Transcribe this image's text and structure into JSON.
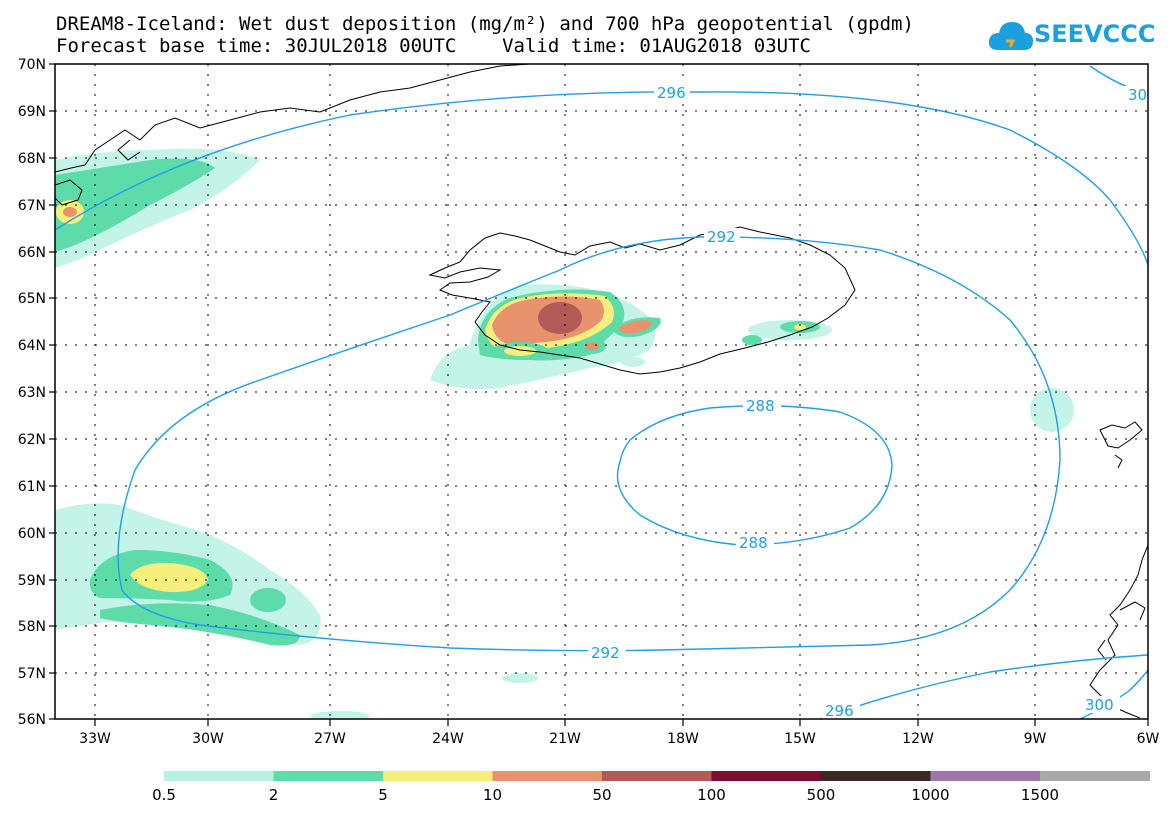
{
  "title_line1": "DREAM8-Iceland: Wet dust deposition (mg/m²) and 700 hPa geopotential (gpdm)",
  "title_line2": "Forecast base time: 30JUL2018 00UTC    Valid time: 01AUG2018 03UTC",
  "logo": {
    "text": "SEEVCCC",
    "icon": "cloud-icon",
    "color": "#1a9fe0"
  },
  "lat_labels": [
    "70N",
    "69N",
    "68N",
    "67N",
    "66N",
    "65N",
    "64N",
    "63N",
    "62N",
    "61N",
    "60N",
    "59N",
    "58N",
    "57N",
    "56N"
  ],
  "lon_labels": [
    "33W",
    "30W",
    "27W",
    "24W",
    "21W",
    "18W",
    "15W",
    "12W",
    "9W",
    "6W"
  ],
  "contours": {
    "color": "#1e9fe8",
    "labels": [
      "296",
      "30",
      "292",
      "288",
      "288",
      "292",
      "296",
      "300"
    ]
  },
  "legend": {
    "thresholds": [
      "0.5",
      "2",
      "5",
      "10",
      "50",
      "100",
      "500",
      "1000",
      "1500"
    ],
    "colors": [
      "#b6f0e2",
      "#5ddcaa",
      "#f6ef7c",
      "#e8936e",
      "#b15a56",
      "#7c0e2e",
      "#3b2a22",
      "#9f74a8",
      "#a8a8a8"
    ]
  },
  "field_colors": {
    "c05": "#c4f3e8",
    "c2": "#5ddcaa",
    "c5": "#f6ef7c",
    "c10": "#e8936e",
    "c50": "#b15a56"
  }
}
